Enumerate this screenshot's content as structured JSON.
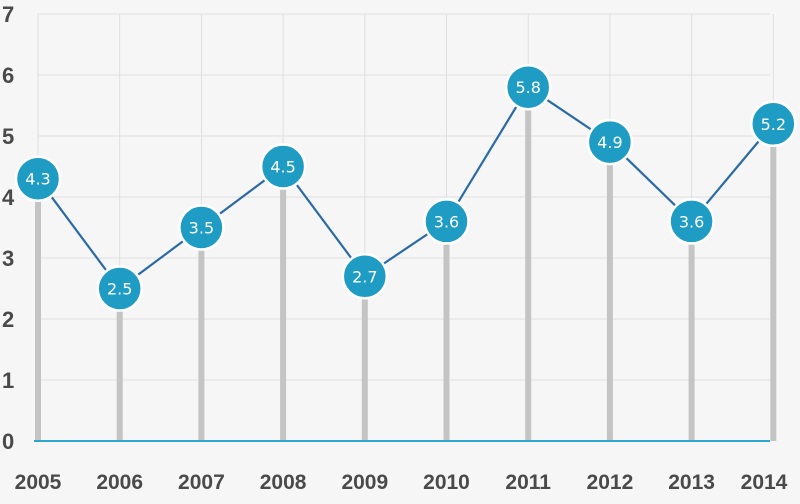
{
  "chart_data": {
    "type": "line",
    "categories": [
      "2005",
      "2006",
      "2007",
      "2008",
      "2009",
      "2010",
      "2011",
      "2012",
      "2013",
      "2014"
    ],
    "values": [
      4.3,
      2.5,
      3.5,
      4.5,
      2.7,
      3.6,
      5.8,
      4.9,
      3.6,
      5.2
    ],
    "value_labels": [
      "4.3",
      "2.5",
      "3.5",
      "4.5",
      "2.7",
      "3.6",
      "5.8",
      "4.9",
      "3.6",
      "5.2"
    ],
    "y_ticks": [
      "0",
      "1",
      "2",
      "3",
      "4",
      "5",
      "6",
      "7"
    ],
    "ylim": [
      0,
      7
    ],
    "title": "",
    "xlabel": "",
    "ylabel": "",
    "grid": true,
    "legend": "none",
    "colors": {
      "line": "#2a6aa6",
      "marker_fill": "#1e9cc4",
      "marker_stroke": "#ffffff",
      "stem": "#c4c4c4",
      "baseline": "#2aa6cf",
      "grid": "#e0e0e0",
      "tick_text": "#4a4a4a",
      "background": "#f6f6f6"
    }
  }
}
